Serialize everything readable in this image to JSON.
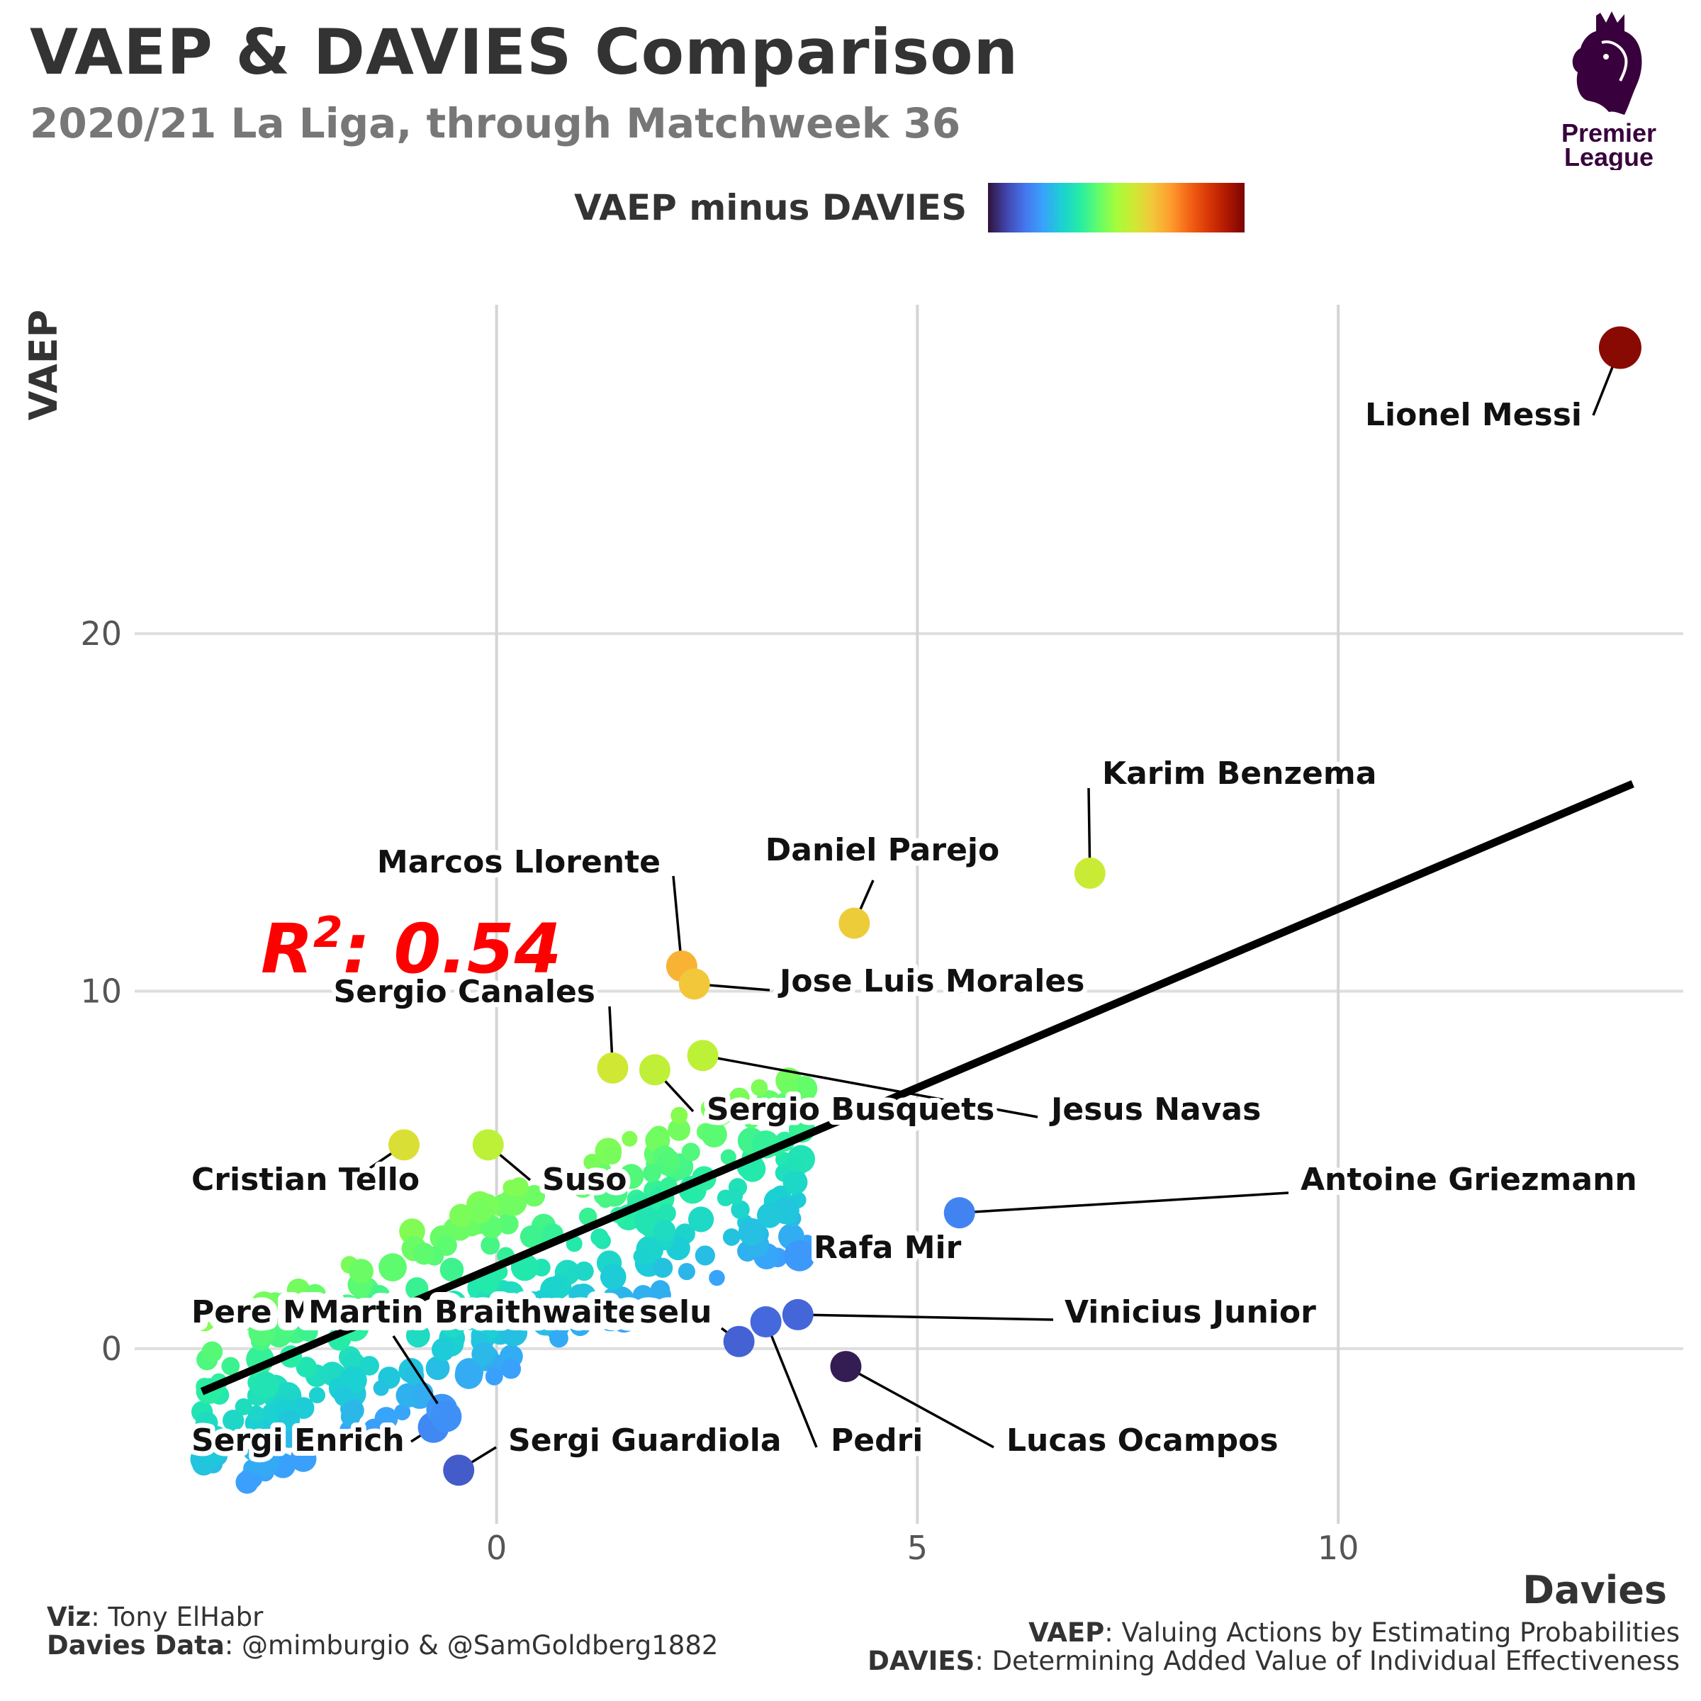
{
  "header": {
    "title": "VAEP & DAVIES Comparison",
    "subtitle": "2020/21 La Liga, through Matchweek 36"
  },
  "legend": {
    "title": "VAEP minus DAVIES",
    "colors": [
      "#30123b",
      "#4145ab",
      "#4675ed",
      "#39a2fc",
      "#1bcfd4",
      "#24eca6",
      "#61fc6c",
      "#a4fc3b",
      "#d1e834",
      "#f3c63a",
      "#fe9b2d",
      "#f36315",
      "#d93806",
      "#b11901",
      "#7a0402"
    ]
  },
  "logo": {
    "line1": "Premier",
    "line2": "League",
    "color": "#38003c"
  },
  "annotation": {
    "r2_label": "R",
    "r2_sup": "2",
    "r2_value": ": 0.54",
    "color": "#ff0000"
  },
  "caption": {
    "viz_label": "Viz",
    "viz_value": ": Tony ElHabr",
    "data_label": "Davies Data",
    "data_value": ": @mimburgio & @SamGoldberg1882",
    "vaep_label": "VAEP",
    "vaep_value": ": Valuing Actions by Estimating Probabilities",
    "davies_label": "DAVIES",
    "davies_value": ": Determining Added Value of Individual Effectiveness"
  },
  "chart_data": {
    "type": "scatter",
    "xlabel": "Davies",
    "ylabel": "VAEP",
    "xlim": [
      -4.3,
      14.1
    ],
    "ylim": [
      -4.9,
      29.2
    ],
    "xticks": [
      0,
      5,
      10
    ],
    "yticks": [
      0,
      10,
      20
    ],
    "grid": true,
    "trend_line": {
      "x": [
        -3.5,
        13.5
      ],
      "y": [
        -1.2,
        15.8
      ]
    },
    "labeled_points": [
      {
        "name": "Lionel Messi",
        "x": 13.35,
        "y": 28.0,
        "diff": 14.6
      },
      {
        "name": "Karim Benzema",
        "x": 7.05,
        "y": 13.3,
        "diff": 6.2
      },
      {
        "name": "Daniel Parejo",
        "x": 4.25,
        "y": 11.9,
        "diff": 7.6
      },
      {
        "name": "Marcos Llorente",
        "x": 2.2,
        "y": 10.7,
        "diff": 8.5
      },
      {
        "name": "Jose Luis Morales",
        "x": 2.35,
        "y": 10.2,
        "diff": 7.8
      },
      {
        "name": "Sergio Canales",
        "x": 1.38,
        "y": 7.85,
        "diff": 6.4
      },
      {
        "name": "Sergio Busquets",
        "x": 1.88,
        "y": 7.8,
        "diff": 5.9
      },
      {
        "name": "Jesus Navas",
        "x": 2.45,
        "y": 8.2,
        "diff": 5.8
      },
      {
        "name": "Cristian Tello",
        "x": -1.1,
        "y": 5.7,
        "diff": 6.8
      },
      {
        "name": "Suso",
        "x": -0.1,
        "y": 5.7,
        "diff": 5.8
      },
      {
        "name": "Antoine Griezmann",
        "x": 5.5,
        "y": 3.8,
        "diff": -1.7
      },
      {
        "name": "Rafa Mir",
        "x": 3.6,
        "y": 2.6,
        "diff": -1.0
      },
      {
        "name": "Vinicius Junior",
        "x": 3.58,
        "y": 0.95,
        "diff": -2.6
      },
      {
        "name": "Pedri",
        "x": 3.2,
        "y": 0.75,
        "diff": -2.5
      },
      {
        "name": "Lucas Ocampos",
        "x": 4.15,
        "y": -0.5,
        "diff": -4.7
      },
      {
        "name": "Sergi Enrich",
        "x": -0.75,
        "y": -2.2,
        "diff": -1.5
      },
      {
        "name": "Sergi Guardiola",
        "x": -0.45,
        "y": -3.4,
        "diff": -2.9
      },
      {
        "name": "Pere M",
        "x": -0.65,
        "y": -1.7,
        "diff": -1.1
      },
      {
        "name": "Martin Braithwaite",
        "x": -0.6,
        "y": -1.9,
        "diff": -1.3
      },
      {
        "name": "selu",
        "x": 2.88,
        "y": 0.2,
        "diff": -2.7
      }
    ]
  }
}
